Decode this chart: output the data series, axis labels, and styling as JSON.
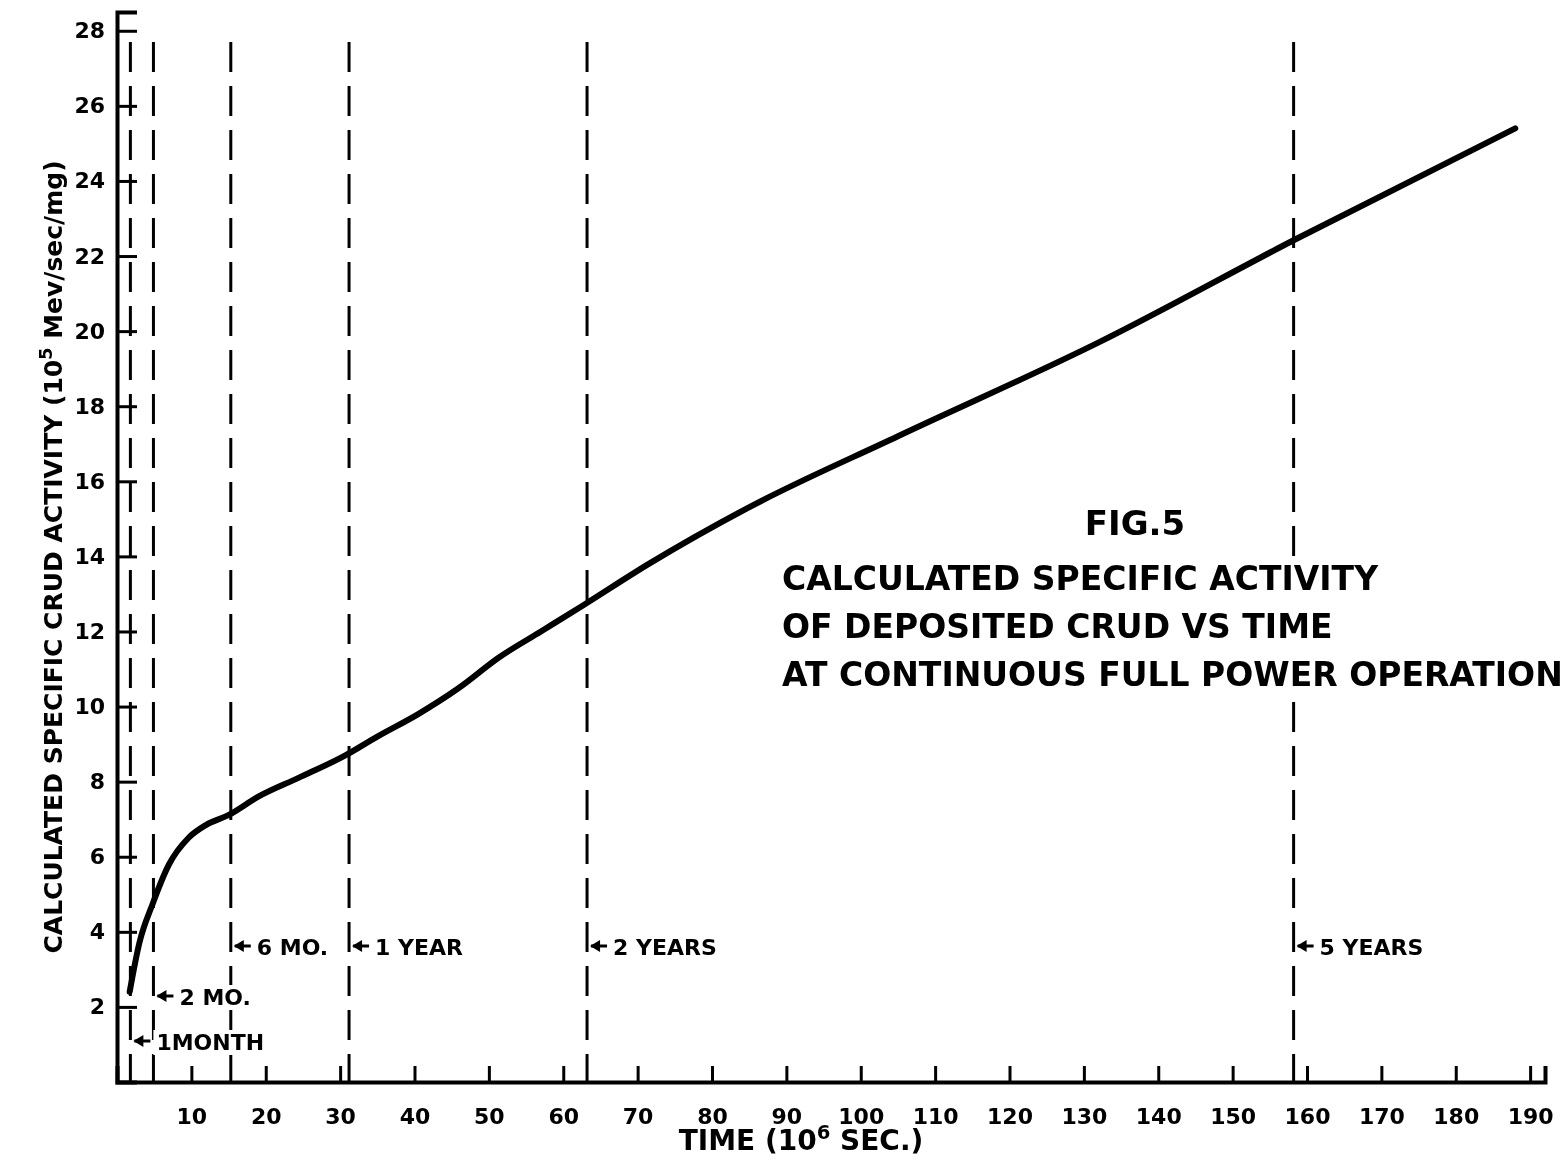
{
  "chart_data": {
    "type": "line",
    "title": "FIG.5",
    "subtitle": "CALCULATED SPECIFIC ACTIVITY\nOF DEPOSITED CRUD VS TIME\nAT CONTINUOUS FULL POWER OPERATION",
    "xlabel": "TIME (10$^{6}$ SEC.)",
    "ylabel": "CALCULATED SPECIFIC CRUD ACTIVITY (10$^{5}$ Mev/sec/mg)",
    "x": [
      1.7,
      3,
      4.8,
      7,
      9.6,
      12,
      14.9,
      19,
      24.4,
      30.7,
      35,
      40.5,
      46,
      51.3,
      57,
      62.7,
      71.5,
      84.9,
      105,
      132,
      158,
      188
    ],
    "series": [
      {
        "color": "#000000",
        "values": [
          2.4,
          3.7,
          4.75,
          5.8,
          6.5,
          6.85,
          7.1,
          7.6,
          8.1,
          8.7,
          9.2,
          9.8,
          10.5,
          11.3,
          12,
          12.7,
          13.8,
          15.3,
          17.2,
          19.7,
          22.4,
          25.4
        ]
      }
    ],
    "xlim": [
      0,
      192
    ],
    "ylim": [
      0,
      28.5
    ],
    "xticks": [
      10,
      20,
      30,
      40,
      50,
      60,
      70,
      80,
      90,
      100,
      110,
      120,
      130,
      140,
      150,
      160,
      170,
      180,
      190
    ],
    "yticks": [
      2,
      4,
      6,
      8,
      10,
      12,
      14,
      16,
      18,
      20,
      22,
      24,
      26,
      28
    ],
    "ref_lines": [
      {
        "axis": "x",
        "value": 1.8,
        "label": "1MONTH",
        "line_style": "dashed"
      },
      {
        "axis": "x",
        "value": 4.9,
        "label": "2 MO.",
        "line_style": "dashed"
      },
      {
        "axis": "x",
        "value": 15.3,
        "label": "6 MO.",
        "line_style": "dashed"
      },
      {
        "axis": "x",
        "value": 31.2,
        "label": "1 YEAR",
        "line_style": "dashed"
      },
      {
        "axis": "x",
        "value": 63.2,
        "label": "2 YEARS",
        "line_style": "dashed"
      },
      {
        "axis": "x",
        "value": 158.2,
        "label": "5 YEARS",
        "line_style": "dashed"
      }
    ],
    "grid": false,
    "marker": "none",
    "line_style": "solid"
  }
}
